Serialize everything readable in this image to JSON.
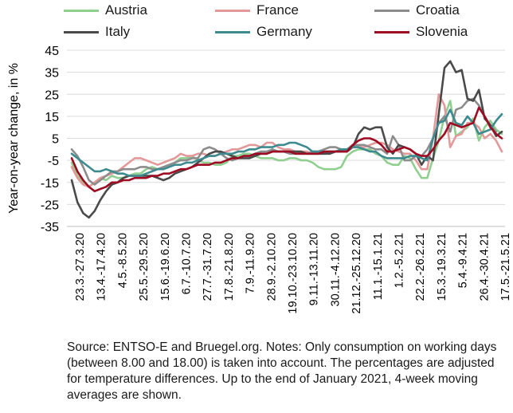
{
  "chart_data": {
    "type": "line",
    "ylabel": "Year-on-year change, in %",
    "ylim": [
      -35,
      45
    ],
    "yticks": [
      -35,
      -25,
      -15,
      -5,
      5,
      15,
      25,
      35,
      45
    ],
    "grid": "horizontal",
    "legend_position": "top",
    "xtick_labels": [
      "23.3.-27.3.20",
      "13.4.-17.4.20",
      "4.5.-8.5.20",
      "25.5.-29.5.20",
      "15.6.-19.6.20",
      "6.7.-10.7.20",
      "27.7.-31.7.20",
      "17.8.-21.8.20",
      "7.9.-11.9.20",
      "28.9.-2.10.20",
      "19.10.-23.10.20",
      "9.11.-13.11.20",
      "30.11.-4.12.20",
      "21.12.-25.12.20",
      "11.1.-15.1.21",
      "1.2.-5.2.21",
      "22.2.-26.2.21",
      "15.3.-19.3.21",
      "5.4.-9.4.21",
      "26.4.-30.4.21",
      "17.5.-21.5.21"
    ],
    "series": [
      {
        "name": "Austria",
        "color": "#8fcf8f",
        "values": [
          -6,
          -12,
          -15,
          -17,
          -15,
          -13,
          -14,
          -12,
          -13,
          -13,
          -12,
          -11,
          -11,
          -9,
          -8,
          -9,
          -8,
          -7,
          -6,
          -4,
          -4,
          -3,
          -5,
          -6,
          -6,
          -7,
          -7,
          -6,
          -3,
          -3,
          -2,
          -2,
          -3,
          -4,
          -4,
          -4,
          -5,
          -5,
          -4,
          -4,
          -5,
          -5,
          -6,
          -8,
          -9,
          -9,
          -9,
          -8,
          -3,
          -1,
          0,
          0,
          0,
          -2,
          -3,
          -6,
          -7,
          -7,
          -3,
          -4,
          -9,
          -13,
          -13,
          -4,
          4,
          15,
          22,
          6,
          8,
          10,
          14,
          4,
          10,
          13,
          9,
          7
        ]
      },
      {
        "name": "France",
        "color": "#e3999a",
        "values": [
          -8,
          -13,
          -16,
          -17,
          -15,
          -13,
          -12,
          -11,
          -10,
          -8,
          -6,
          -4,
          -4,
          -5,
          -6,
          -7,
          -6,
          -5,
          -4,
          -2,
          -3,
          -3,
          -2,
          -2,
          -3,
          -3,
          -2,
          -1,
          0,
          0,
          1,
          2,
          2,
          1,
          3,
          3,
          1,
          0,
          0,
          -1,
          -1,
          -1,
          -2,
          -2,
          -2,
          -1,
          -1,
          -1,
          0,
          1,
          1,
          1,
          2,
          3,
          3,
          2,
          0,
          -1,
          -2,
          -2,
          -5,
          -9,
          -9,
          5,
          25,
          20,
          1,
          6,
          7,
          12,
          12,
          10,
          5,
          7,
          4,
          -1
        ]
      },
      {
        "name": "Croatia",
        "color": "#8c8c8c",
        "values": [
          0,
          -3,
          -8,
          -14,
          -16,
          -14,
          -12,
          -10,
          -10,
          -9,
          -9,
          -9,
          -8,
          -8,
          -9,
          -9,
          -8,
          -7,
          -6,
          -5,
          -5,
          -4,
          -4,
          0,
          1,
          0,
          -2,
          -4,
          -5,
          -4,
          -3,
          -3,
          -2,
          -1,
          -1,
          0,
          -1,
          -1,
          -2,
          -2,
          -2,
          -2,
          -1,
          -1,
          0,
          1,
          1,
          0,
          0,
          2,
          2,
          2,
          1,
          0,
          0,
          -2,
          6,
          2,
          -5,
          -5,
          -3,
          -3,
          0,
          5,
          12,
          15,
          8,
          18,
          19,
          22,
          23,
          20,
          15,
          11,
          8
        ]
      },
      {
        "name": "Italy",
        "color": "#4a4a4a",
        "values": [
          -14,
          -24,
          -29,
          -31,
          -28,
          -23,
          -19,
          -16,
          -15,
          -13,
          -12,
          -12,
          -12,
          -12,
          -12,
          -13,
          -14,
          -13,
          -11,
          -10,
          -9,
          -8,
          -6,
          -4,
          -2,
          -1,
          -1,
          -2,
          -3,
          -4,
          -4,
          -4,
          -3,
          -2,
          -2,
          -1,
          -1,
          -1,
          -1,
          -1,
          -1,
          -2,
          -2,
          -2,
          -2,
          -2,
          -1,
          -1,
          -1,
          1,
          7,
          10,
          9,
          10,
          10,
          1,
          -2,
          2,
          1,
          0,
          -2,
          -7,
          -3,
          -5,
          16,
          37,
          40,
          35,
          36,
          23,
          22,
          27,
          14,
          11,
          6,
          8
        ]
      },
      {
        "name": "Germany",
        "color": "#3d8a8f",
        "values": [
          -2,
          -4,
          -6,
          -8,
          -10,
          -10,
          -9,
          -10,
          -11,
          -11,
          -12,
          -12,
          -12,
          -11,
          -10,
          -9,
          -9,
          -8,
          -7,
          -7,
          -6,
          -6,
          -5,
          -4,
          -3,
          -3,
          -2,
          -2,
          -2,
          -1,
          -1,
          0,
          0,
          1,
          1,
          1,
          2,
          2,
          3,
          3,
          2,
          1,
          -1,
          -1,
          -1,
          -1,
          -1,
          0,
          0,
          1,
          1,
          0,
          -1,
          -1,
          -3,
          -4,
          -4,
          -4,
          -4,
          -3,
          -3,
          -4,
          -5,
          5,
          12,
          13,
          18,
          12,
          11,
          15,
          12,
          7,
          8,
          9,
          13,
          16
        ]
      },
      {
        "name": "Slovenia",
        "color": "#9e0b22",
        "values": [
          -4,
          -10,
          -14,
          -17,
          -19,
          -18,
          -17,
          -15,
          -15,
          -14,
          -14,
          -13,
          -13,
          -13,
          -12,
          -12,
          -11,
          -11,
          -10,
          -9,
          -9,
          -8,
          -7,
          -7,
          -7,
          -6,
          -6,
          -5,
          -4,
          -4,
          -3,
          -3,
          -2,
          -2,
          -2,
          -1,
          -1,
          -1,
          -1,
          -2,
          -2,
          -2,
          -2,
          -2,
          -1,
          -1,
          -1,
          -1,
          -1,
          2,
          4,
          5,
          5,
          4,
          2,
          -1,
          -1,
          0,
          1,
          0,
          -2,
          -3,
          -3,
          0,
          4,
          7,
          12,
          11,
          10,
          11,
          12,
          19,
          15,
          10,
          7,
          5
        ]
      }
    ]
  },
  "source_note": "Source: ENTSO-E and Bruegel.org. Notes: Only consumption on working days (between 8.00 and 18.00) is taken into account. The percentages are adjusted for temperature differences. Up to the end of January 2021, 4-week moving averages are shown."
}
